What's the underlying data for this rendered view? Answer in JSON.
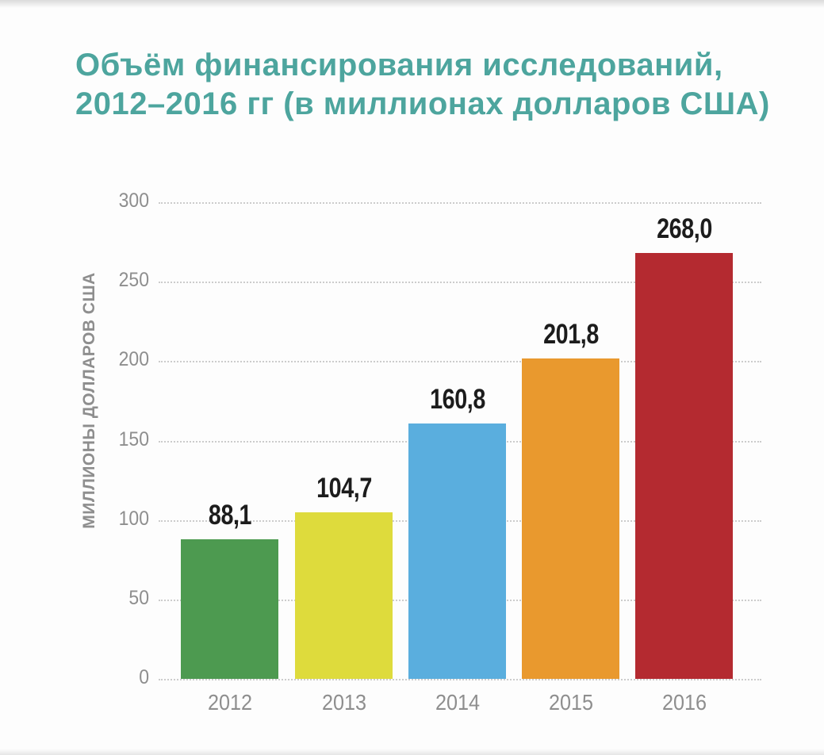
{
  "title": {
    "line1": "Объём финансирования исследований,",
    "line2": "2012–2016 гг (в миллионах долларов США)",
    "color": "#4da59e"
  },
  "chart_data": {
    "type": "bar",
    "title": "Объём финансирования исследований, 2012–2016 гг (в миллионах долларов США)",
    "categories": [
      "2012",
      "2013",
      "2014",
      "2015",
      "2016"
    ],
    "values": [
      88.1,
      104.7,
      160.8,
      201.8,
      268.0
    ],
    "value_labels": [
      "88,1",
      "104,7",
      "160,8",
      "201,8",
      "268,0"
    ],
    "bar_colors": [
      "#4d9a50",
      "#dedb3c",
      "#5aaede",
      "#e9992e",
      "#b42a30"
    ],
    "xlabel": "",
    "ylabel": "МИЛЛИОНЫ ДОЛЛАРОВ США",
    "ylim": [
      0,
      300
    ],
    "yticks": [
      300,
      250,
      200,
      150,
      100,
      50,
      0
    ],
    "grid": "horizontal dotted gridlines at every 50",
    "legend": "none",
    "value_label_position": "above bars",
    "colors_meta": {
      "tick_label_color": "#8e8e8e",
      "grid_color": "#cccccc",
      "value_label_color": "#1c1c1c"
    }
  }
}
